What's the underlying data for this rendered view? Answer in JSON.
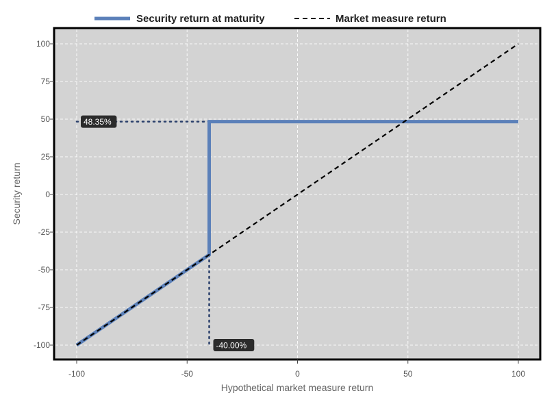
{
  "chart_data": {
    "type": "line",
    "title": "",
    "xlabel": "Hypothetical market measure return",
    "ylabel": "Security return",
    "xlim": [
      -110,
      110
    ],
    "ylim": [
      -110,
      110
    ],
    "x_ticks": [
      -100,
      -50,
      0,
      50,
      100
    ],
    "y_ticks": [
      -100,
      -75,
      -50,
      -25,
      0,
      25,
      50,
      75,
      100
    ],
    "grid": true,
    "legend_position": "top-center",
    "background_color": "#d3d3d3",
    "series": [
      {
        "name": "Security return at maturity",
        "color": "#5b80b9",
        "style": "solid",
        "x": [
          -100,
          -40,
          -40,
          100
        ],
        "y": [
          -100,
          -40,
          48.35,
          48.35
        ]
      },
      {
        "name": "Market measure return",
        "color": "#000000",
        "style": "dashed",
        "x": [
          -100,
          100
        ],
        "y": [
          -100,
          100
        ]
      }
    ],
    "reference_lines": [
      {
        "x": [
          -100,
          -40
        ],
        "y": [
          48.35,
          48.35
        ],
        "style": "dotted",
        "color": "#2a3f6b"
      },
      {
        "x": [
          -40,
          -40
        ],
        "y": [
          -40,
          -100
        ],
        "style": "dotted",
        "color": "#2a3f6b"
      }
    ],
    "annotations": [
      {
        "text": "48.35%",
        "x": -100,
        "y": 48.35
      },
      {
        "text": "-40.00%",
        "x": -40,
        "y": -100
      }
    ]
  }
}
